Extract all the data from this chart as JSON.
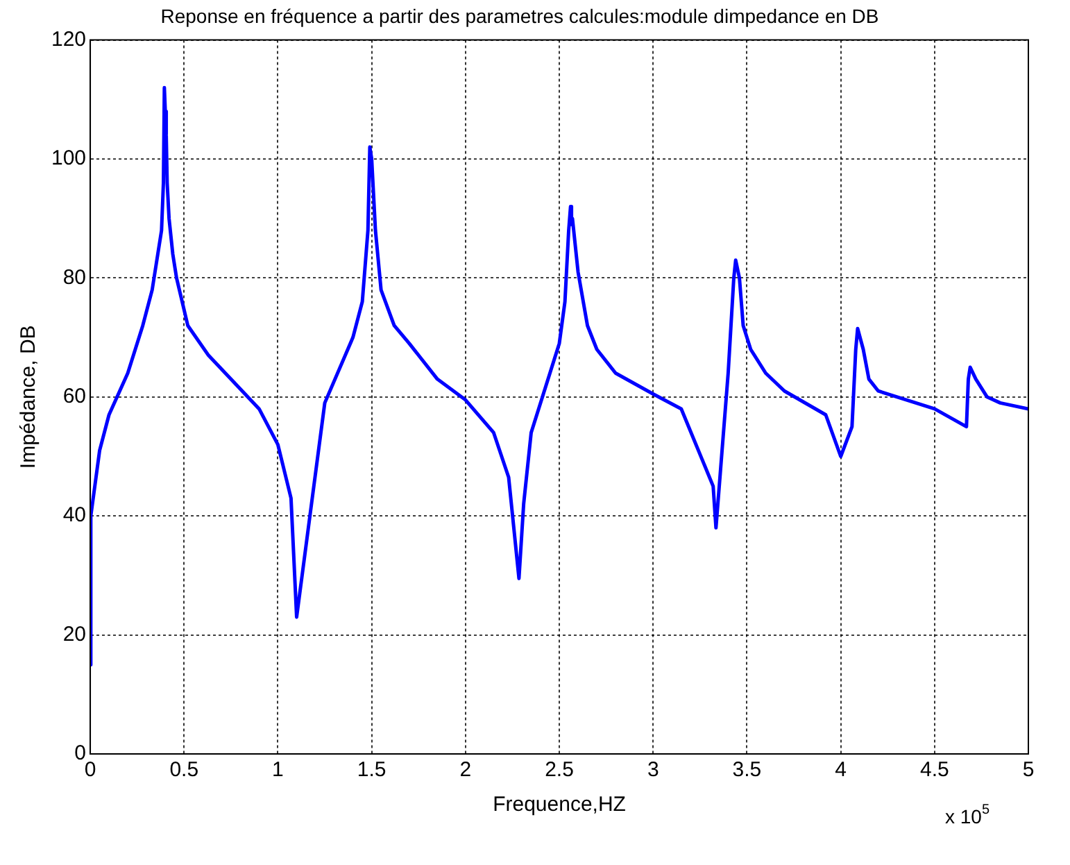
{
  "chart_data": {
    "type": "line",
    "title": "Reponse en fréquence a partir des parametres calcules:module dimpedance en DB",
    "xlabel": "Frequence,HZ",
    "ylabel": "Impédance, DB",
    "annotations": [
      "x 10$^{5}$"
    ],
    "series": [
      {
        "color": "#0000ff",
        "x": [
          0,
          0.003,
          0.05,
          0.1,
          0.2,
          0.28,
          0.33,
          0.36,
          0.38,
          0.39,
          0.395,
          0.4,
          0.405,
          0.41,
          0.42,
          0.44,
          0.46,
          0.52,
          0.63,
          0.9,
          1.0,
          1.07,
          1.1,
          1.25,
          1.4,
          1.45,
          1.48,
          1.49,
          1.5,
          1.52,
          1.55,
          1.62,
          1.7,
          1.75,
          1.85,
          2.0,
          2.15,
          2.23,
          2.285,
          2.31,
          2.35,
          2.5,
          2.53,
          2.55,
          2.56,
          2.565,
          2.57,
          2.6,
          2.65,
          2.7,
          2.8,
          3.0,
          3.15,
          3.32,
          3.335,
          3.36,
          3.4,
          3.43,
          3.44,
          3.46,
          3.48,
          3.52,
          3.6,
          3.7,
          3.92,
          4.0,
          4.06,
          4.08,
          4.09,
          4.12,
          4.15,
          4.2,
          4.5,
          4.67,
          4.68,
          4.69,
          4.72,
          4.78,
          4.85,
          5.0
        ],
        "values": [
          15,
          40,
          51,
          57,
          64,
          72,
          78,
          84,
          88,
          96,
          112,
          108,
          104,
          96,
          90,
          84,
          80,
          72,
          67,
          58,
          52,
          43,
          23,
          59,
          70,
          76,
          88,
          102,
          100,
          88,
          78,
          72,
          69,
          67,
          63,
          59.5,
          54,
          46.5,
          29.5,
          42,
          54,
          69,
          76,
          88,
          92,
          89,
          90,
          81,
          72,
          68,
          64,
          60.5,
          58,
          45,
          38,
          48,
          64,
          80,
          83,
          80,
          72,
          68,
          64,
          61,
          57,
          50,
          55,
          68,
          71.5,
          68,
          63,
          61,
          58,
          55,
          63,
          65,
          63,
          60,
          59,
          58
        ]
      }
    ],
    "xlim": [
      0,
      5
    ],
    "xticks": [
      0,
      0.5,
      1,
      1.5,
      2,
      2.5,
      3,
      3.5,
      4,
      4.5,
      5
    ],
    "ylim": [
      0,
      120
    ],
    "yticks": [
      0,
      20,
      40,
      60,
      80,
      100,
      120
    ],
    "grid": true,
    "legend": false,
    "marker": "none",
    "line_style": "solid"
  }
}
